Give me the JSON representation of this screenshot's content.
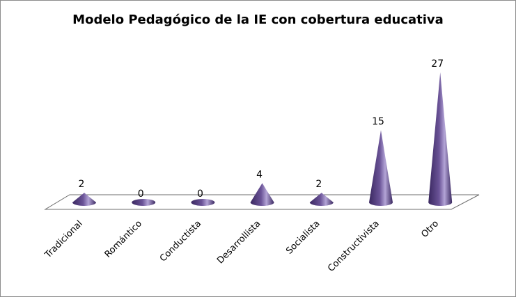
{
  "chart_data": {
    "type": "bar",
    "style": "3d-cone",
    "title": "Modelo Pedagógico de la IE con cobertura educativa",
    "categories": [
      "Tradicional",
      "Romántico",
      "Conductista",
      "Desarrollista",
      "Socialista",
      "Constructivista",
      "Otro"
    ],
    "values": [
      2,
      0,
      0,
      4,
      2,
      15,
      27
    ],
    "xlabel": "",
    "ylabel": "",
    "ylim": [
      0,
      27
    ],
    "grid": false,
    "legend": "none",
    "colors": {
      "cone_dark": "#3a2860",
      "cone_mid": "#6a5397",
      "cone_light": "#b3a4d6",
      "floor_stroke": "#6d6d6d"
    }
  }
}
